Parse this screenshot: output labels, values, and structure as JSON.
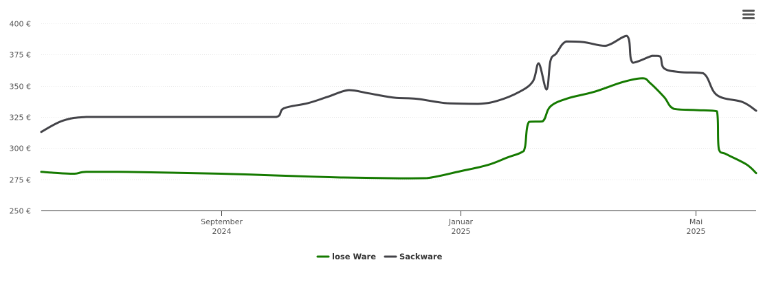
{
  "menu_icon": "hamburger-menu-icon",
  "chart_data": {
    "type": "line",
    "x_type": "date",
    "xlim": [
      "2024-06-01",
      "2025-06-01"
    ],
    "ylim": [
      250,
      400
    ],
    "yticks": [
      250,
      275,
      300,
      325,
      350,
      375,
      400
    ],
    "ytick_labels": [
      "250 €",
      "275 €",
      "300 €",
      "325 €",
      "350 €",
      "375 €",
      "400 €"
    ],
    "xticks": [
      {
        "date": "2024-09-01",
        "label_line1": "September",
        "label_line2": "2024"
      },
      {
        "date": "2025-01-01",
        "label_line1": "Januar",
        "label_line2": "2025"
      },
      {
        "date": "2025-05-01",
        "label_line1": "Mai",
        "label_line2": "2025"
      }
    ],
    "grid": true,
    "legend_position": "bottom-center",
    "series": [
      {
        "name": "lose Ware",
        "color": "#157a00",
        "points": [
          [
            "2024-06-01",
            281
          ],
          [
            "2024-06-10",
            280
          ],
          [
            "2024-06-18",
            279.5
          ],
          [
            "2024-06-24",
            281
          ],
          [
            "2024-07-10",
            281
          ],
          [
            "2024-08-01",
            280.5
          ],
          [
            "2024-09-01",
            279.5
          ],
          [
            "2024-10-01",
            278
          ],
          [
            "2024-11-01",
            276.5
          ],
          [
            "2024-12-01",
            275.8
          ],
          [
            "2024-12-15",
            276
          ],
          [
            "2025-01-01",
            281.5
          ],
          [
            "2025-01-15",
            286.5
          ],
          [
            "2025-01-25",
            292.5
          ],
          [
            "2025-02-01",
            296.5
          ],
          [
            "2025-02-03",
            301
          ],
          [
            "2025-02-05",
            321
          ],
          [
            "2025-02-12",
            321.5
          ],
          [
            "2025-02-16",
            333.5
          ],
          [
            "2025-02-25",
            340
          ],
          [
            "2025-03-10",
            345
          ],
          [
            "2025-03-25",
            353
          ],
          [
            "2025-04-04",
            356
          ],
          [
            "2025-04-08",
            352
          ],
          [
            "2025-04-15",
            341
          ],
          [
            "2025-04-20",
            331.5
          ],
          [
            "2025-05-01",
            330.5
          ],
          [
            "2025-05-12",
            329.5
          ],
          [
            "2025-05-13",
            299
          ],
          [
            "2025-05-17",
            295
          ],
          [
            "2025-05-27",
            287
          ],
          [
            "2025-06-01",
            280
          ]
        ]
      },
      {
        "name": "Sackware",
        "color": "#434348",
        "points": [
          [
            "2024-06-01",
            313
          ],
          [
            "2024-06-12",
            322
          ],
          [
            "2024-06-24",
            325
          ],
          [
            "2024-07-15",
            325
          ],
          [
            "2024-08-15",
            325
          ],
          [
            "2024-09-15",
            325
          ],
          [
            "2024-09-29",
            325
          ],
          [
            "2024-10-03",
            332
          ],
          [
            "2024-10-15",
            336
          ],
          [
            "2024-10-25",
            341
          ],
          [
            "2024-11-05",
            346.5
          ],
          [
            "2024-11-15",
            344
          ],
          [
            "2024-11-28",
            340.5
          ],
          [
            "2024-12-10",
            339.5
          ],
          [
            "2024-12-25",
            336
          ],
          [
            "2025-01-10",
            335.5
          ],
          [
            "2025-01-20",
            338
          ],
          [
            "2025-01-31",
            345
          ],
          [
            "2025-02-07",
            353.5
          ],
          [
            "2025-02-10",
            368
          ],
          [
            "2025-02-14",
            347
          ],
          [
            "2025-02-16",
            370
          ],
          [
            "2025-02-19",
            376
          ],
          [
            "2025-02-24",
            385.5
          ],
          [
            "2025-03-05",
            385
          ],
          [
            "2025-03-16",
            382
          ],
          [
            "2025-03-27",
            390
          ],
          [
            "2025-03-30",
            368.5
          ],
          [
            "2025-04-09",
            374
          ],
          [
            "2025-04-13",
            373.5
          ],
          [
            "2025-04-15",
            364
          ],
          [
            "2025-04-23",
            361
          ],
          [
            "2025-05-05",
            360
          ],
          [
            "2025-05-12",
            342.5
          ],
          [
            "2025-05-25",
            337
          ],
          [
            "2025-06-01",
            330
          ]
        ]
      }
    ]
  }
}
